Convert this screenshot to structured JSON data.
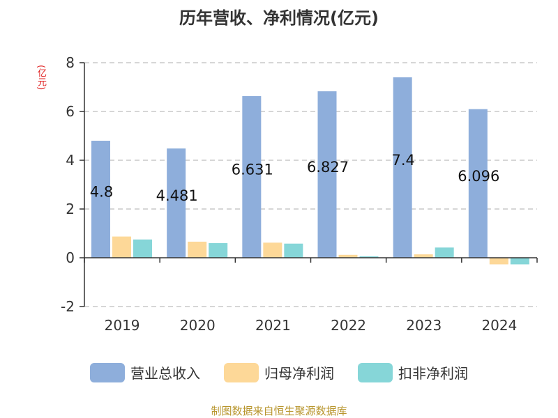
{
  "title": "历年营收、净利情况(亿元)",
  "unit_label": "(亿元)",
  "source": "制图数据来自恒生聚源数据库",
  "chart_data": {
    "type": "bar",
    "title": "历年营收、净利情况(亿元)",
    "categories": [
      "2019",
      "2020",
      "2021",
      "2022",
      "2023",
      "2024"
    ],
    "series": [
      {
        "name": "营业总收入",
        "color": "#8eaedb",
        "values": [
          4.8,
          4.481,
          6.631,
          6.827,
          7.4,
          6.096
        ],
        "labels": [
          "4.8",
          "4.481",
          "6.631",
          "6.827",
          "7.4",
          "6.096"
        ]
      },
      {
        "name": "归母净利润",
        "color": "#fdd898",
        "values": [
          0.87,
          0.66,
          0.62,
          0.12,
          0.14,
          -0.27
        ]
      },
      {
        "name": "扣非净利润",
        "color": "#86d6d8",
        "values": [
          0.75,
          0.6,
          0.58,
          0.06,
          0.42,
          -0.27
        ]
      }
    ],
    "yticks": [
      "-2",
      "0",
      "2",
      "4",
      "6",
      "8"
    ],
    "ylim": [
      -2,
      8
    ],
    "grid": true,
    "legend_position": "bottom"
  }
}
